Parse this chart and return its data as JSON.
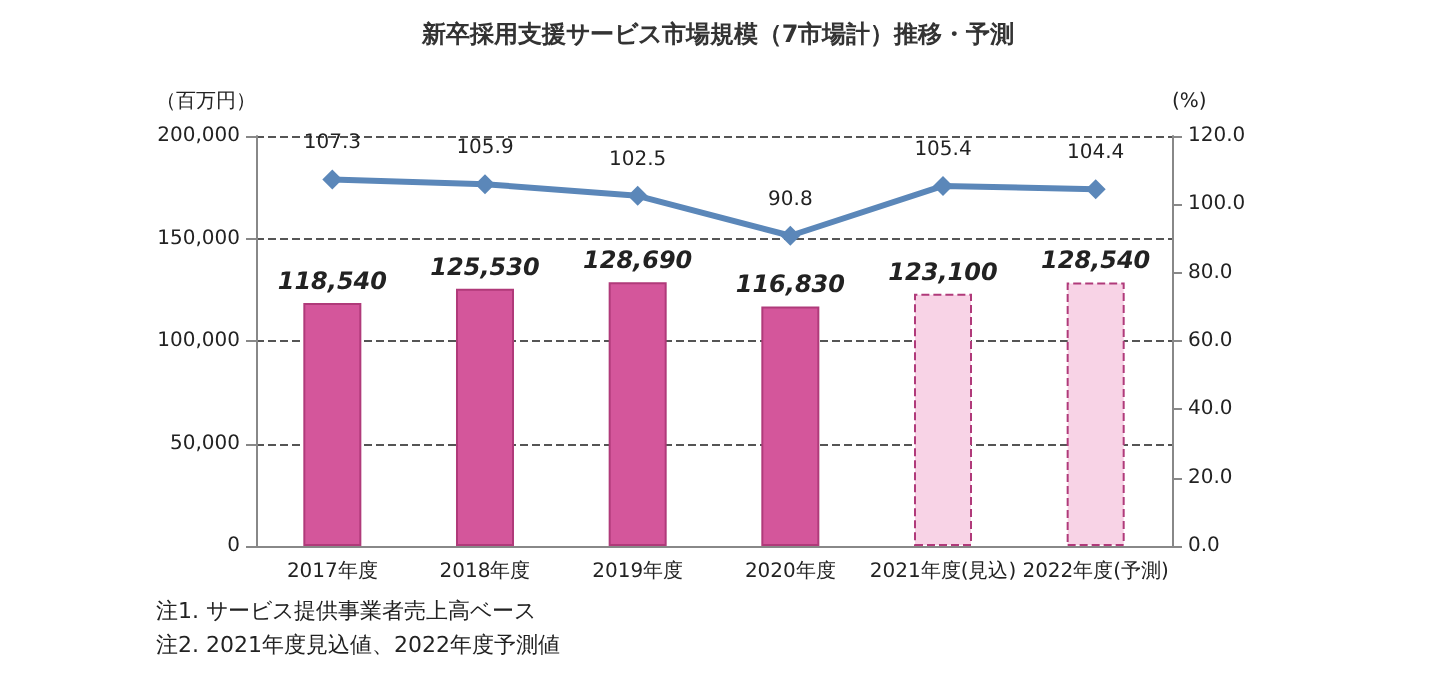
{
  "chart_data": {
    "type": "bar",
    "title": "新卒採用支援サービス市場規模（7市場計）推移・予測",
    "categories": [
      "2017年度",
      "2018年度",
      "2019年度",
      "2020年度",
      "2021年度(見込)",
      "2022年度(予測)"
    ],
    "series": [
      {
        "colors": [
          "#d4569b",
          "#d4569b",
          "#d4569b",
          "#d4569b",
          "#f8d3e6",
          "#f8d3e6"
        ],
        "values": [
          118540,
          125530,
          128690,
          116830,
          123100,
          128540
        ],
        "value_labels": [
          "118,540",
          "125,530",
          "128,690",
          "116,830",
          "123,100",
          "128,540"
        ]
      },
      {
        "type": "line",
        "axis": "y2",
        "color": "#5b87b9",
        "marker": "diamond",
        "values": [
          107.3,
          105.9,
          102.5,
          90.8,
          105.4,
          104.4
        ],
        "value_labels": [
          "107.3",
          "105.9",
          "102.5",
          "90.8",
          "105.4",
          "104.4"
        ]
      }
    ],
    "ylabel": "（百万円）",
    "y2label": "(%)",
    "ylim": [
      0,
      200000
    ],
    "yticks": [
      {
        "value": 0,
        "label": "0"
      },
      {
        "value": 50000,
        "label": "50,000"
      },
      {
        "value": 100000,
        "label": "100,000"
      },
      {
        "value": 150000,
        "label": "150,000"
      },
      {
        "value": 200000,
        "label": "200,000"
      }
    ],
    "y2lim": [
      0,
      120
    ],
    "y2ticks": [
      {
        "value": 0,
        "label": "0.0"
      },
      {
        "value": 20,
        "label": "20.0"
      },
      {
        "value": 40,
        "label": "40.0"
      },
      {
        "value": 60,
        "label": "60.0"
      },
      {
        "value": 80,
        "label": "80.0"
      },
      {
        "value": 100,
        "label": "100.0"
      },
      {
        "value": 120,
        "label": "120.0"
      }
    ],
    "grid": "y",
    "annotations": [
      "注1. サービス提供事業者売上高ベース",
      "注2. 2021年度見込値、2022年度予測値"
    ]
  }
}
